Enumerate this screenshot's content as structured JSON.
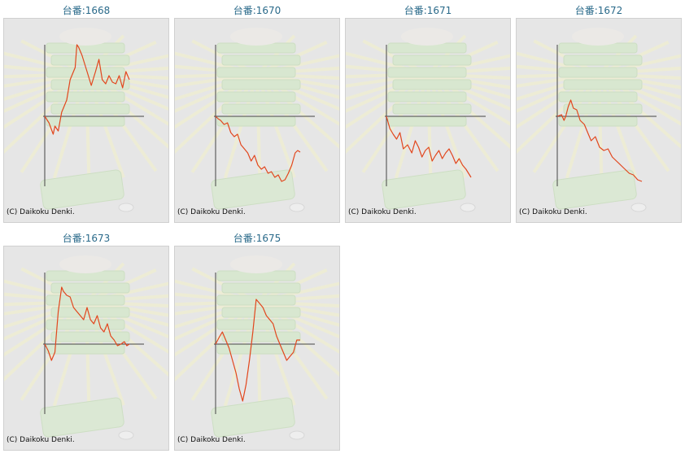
{
  "copyright": "(C) Daikoku Denki.",
  "chart_data": [
    {
      "type": "line",
      "title": "台番:1668",
      "x": [
        0,
        0.05,
        0.1,
        0.12,
        0.16,
        0.2,
        0.26,
        0.3,
        0.36,
        0.38,
        0.4,
        0.44,
        0.5,
        0.55,
        0.6,
        0.64,
        0.68,
        0.72,
        0.76,
        0.8,
        0.84,
        0.88,
        0.92,
        0.96,
        1.0
      ],
      "y": [
        0,
        -8,
        -22,
        -12,
        -18,
        5,
        20,
        45,
        60,
        88,
        85,
        75,
        55,
        38,
        55,
        70,
        45,
        40,
        50,
        42,
        40,
        50,
        35,
        55,
        45
      ]
    },
    {
      "type": "line",
      "title": "台番:1670",
      "x": [
        0,
        0.03,
        0.06,
        0.1,
        0.14,
        0.18,
        0.22,
        0.26,
        0.3,
        0.34,
        0.38,
        0.42,
        0.46,
        0.5,
        0.54,
        0.58,
        0.62,
        0.66,
        0.7,
        0.74,
        0.78,
        0.82,
        0.86,
        0.9,
        0.94,
        0.97,
        1.0
      ],
      "y": [
        0,
        -3,
        -5,
        -10,
        -8,
        -20,
        -25,
        -22,
        -35,
        -40,
        -45,
        -55,
        -48,
        -60,
        -65,
        -62,
        -70,
        -68,
        -75,
        -72,
        -80,
        -78,
        -70,
        -60,
        -45,
        -42,
        -44
      ]
    },
    {
      "type": "line",
      "title": "台番:1671",
      "x": [
        0,
        0.04,
        0.08,
        0.12,
        0.16,
        0.2,
        0.25,
        0.3,
        0.34,
        0.38,
        0.42,
        0.46,
        0.5,
        0.54,
        0.58,
        0.62,
        0.66,
        0.7,
        0.74,
        0.78,
        0.82,
        0.86,
        0.9,
        0.94,
        0.97,
        1.0
      ],
      "y": [
        0,
        -15,
        -22,
        -28,
        -20,
        -40,
        -35,
        -45,
        -30,
        -38,
        -50,
        -42,
        -38,
        -55,
        -48,
        -42,
        -52,
        -45,
        -40,
        -48,
        -58,
        -52,
        -60,
        -65,
        -70,
        -75
      ]
    },
    {
      "type": "line",
      "title": "台番:1672",
      "x": [
        0,
        0.05,
        0.08,
        0.1,
        0.13,
        0.16,
        0.19,
        0.23,
        0.27,
        0.32,
        0.36,
        0.4,
        0.45,
        0.5,
        0.55,
        0.6,
        0.65,
        0.7,
        0.75,
        0.8,
        0.85,
        0.9,
        0.95,
        1.0
      ],
      "y": [
        0,
        2,
        -5,
        0,
        12,
        20,
        10,
        8,
        -5,
        -10,
        -20,
        -30,
        -25,
        -38,
        -42,
        -40,
        -50,
        -55,
        -60,
        -65,
        -70,
        -72,
        -78,
        -80
      ]
    },
    {
      "type": "line",
      "title": "台番:1673",
      "x": [
        0,
        0.04,
        0.08,
        0.12,
        0.16,
        0.2,
        0.22,
        0.26,
        0.3,
        0.34,
        0.38,
        0.42,
        0.46,
        0.5,
        0.54,
        0.58,
        0.62,
        0.66,
        0.7,
        0.74,
        0.78,
        0.82,
        0.86,
        0.9,
        0.94,
        0.97,
        1.0
      ],
      "y": [
        0,
        -8,
        -20,
        -10,
        40,
        70,
        65,
        60,
        58,
        45,
        40,
        35,
        30,
        45,
        30,
        25,
        35,
        20,
        15,
        25,
        10,
        5,
        -2,
        0,
        3,
        -2,
        0
      ]
    },
    {
      "type": "line",
      "title": "台番:1675",
      "x": [
        0,
        0.04,
        0.08,
        0.12,
        0.16,
        0.2,
        0.24,
        0.28,
        0.32,
        0.36,
        0.4,
        0.44,
        0.48,
        0.52,
        0.56,
        0.6,
        0.64,
        0.68,
        0.72,
        0.76,
        0.8,
        0.84,
        0.88,
        0.92,
        0.96,
        1.0
      ],
      "y": [
        0,
        8,
        15,
        5,
        -5,
        -20,
        -35,
        -55,
        -70,
        -50,
        -20,
        15,
        55,
        50,
        45,
        35,
        30,
        25,
        10,
        0,
        -10,
        -20,
        -15,
        -10,
        5,
        5
      ]
    }
  ]
}
